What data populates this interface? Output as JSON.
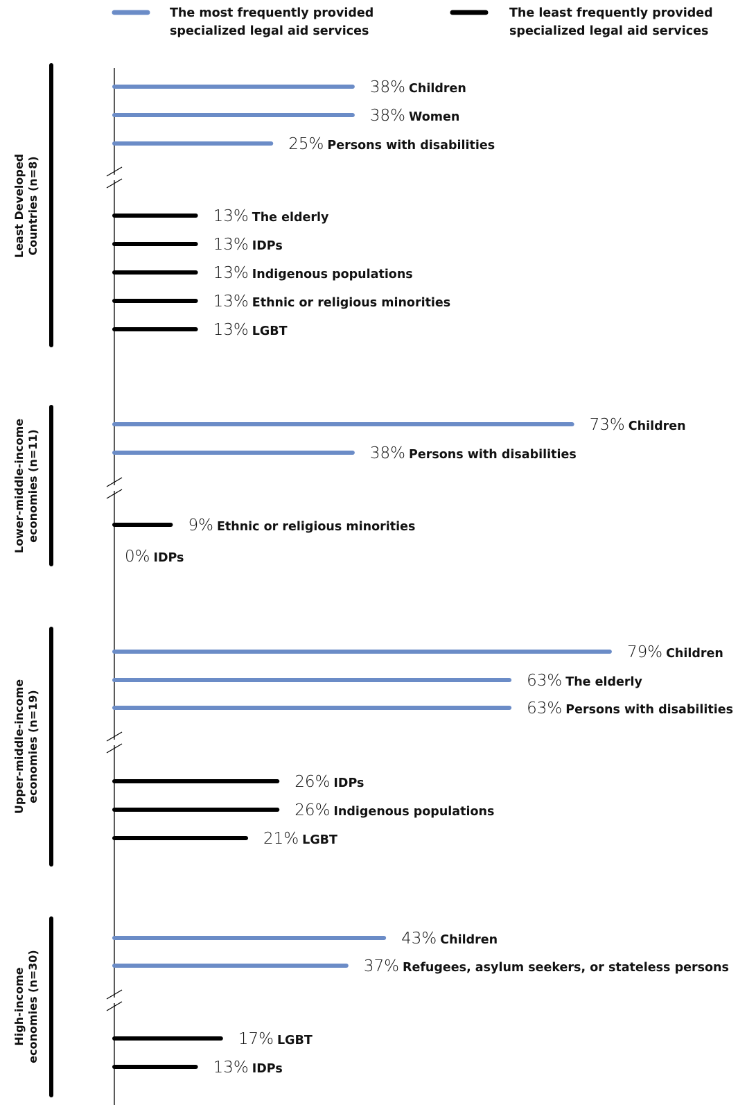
{
  "chart_data": {
    "type": "bar",
    "orientation": "horizontal",
    "unit": "%",
    "legend": {
      "placement": "top",
      "entries": [
        {
          "series": "most",
          "color": "#6b8cc7",
          "lines": [
            "The most frequently provided",
            "specialized legal aid services"
          ]
        },
        {
          "series": "least",
          "color": "#000000",
          "lines": [
            "The least frequently provided",
            "specialized legal aid services"
          ]
        }
      ]
    },
    "axis_break_marks": true,
    "groups": [
      {
        "title_lines": [
          "Least Developed",
          "Countries (n=8)"
        ],
        "most": [
          {
            "label": "Children",
            "value": 38,
            "value_text": "38%"
          },
          {
            "label": "Women",
            "value": 38,
            "value_text": "38%"
          },
          {
            "label": "Persons with disabilities",
            "value": 25,
            "value_text": "25%"
          }
        ],
        "least": [
          {
            "label": "The elderly",
            "value": 13,
            "value_text": "13%"
          },
          {
            "label": "IDPs",
            "value": 13,
            "value_text": "13%"
          },
          {
            "label": "Indigenous populations",
            "value": 13,
            "value_text": "13%"
          },
          {
            "label": "Ethnic or religious minorities",
            "value": 13,
            "value_text": "13%"
          },
          {
            "label": "LGBT",
            "value": 13,
            "value_text": "13%"
          }
        ]
      },
      {
        "title_lines": [
          "Lower-middle-income",
          "economies (n=11)"
        ],
        "most": [
          {
            "label": "Children",
            "value": 73,
            "value_text": "73%"
          },
          {
            "label": "Persons with disabilities",
            "value": 38,
            "value_text": "38%"
          }
        ],
        "least": [
          {
            "label": "Ethnic or religious minorities",
            "value": 9,
            "value_text": "9%"
          },
          {
            "label": "IDPs",
            "value": 0,
            "value_text": "0%"
          }
        ]
      },
      {
        "title_lines": [
          "Upper-middle-income",
          "economies (n=19)"
        ],
        "most": [
          {
            "label": "Children",
            "value": 79,
            "value_text": "79%"
          },
          {
            "label": "The elderly",
            "value": 63,
            "value_text": "63%"
          },
          {
            "label": "Persons with disabilities",
            "value": 63,
            "value_text": "63%"
          }
        ],
        "least": [
          {
            "label": "IDPs",
            "value": 26,
            "value_text": "26%"
          },
          {
            "label": "Indigenous populations",
            "value": 26,
            "value_text": "26%"
          },
          {
            "label": "LGBT",
            "value": 21,
            "value_text": "21%"
          }
        ]
      },
      {
        "title_lines": [
          "High-income",
          "economies (n=30)"
        ],
        "most": [
          {
            "label": "Children",
            "value": 43,
            "value_text": "43%"
          },
          {
            "label": "Refugees, asylum seekers, or stateless persons",
            "value": 37,
            "value_text": "37%"
          }
        ],
        "least": [
          {
            "label": "LGBT",
            "value": 17,
            "value_text": "17%"
          },
          {
            "label": "IDPs",
            "value": 13,
            "value_text": "13%"
          }
        ]
      }
    ]
  }
}
